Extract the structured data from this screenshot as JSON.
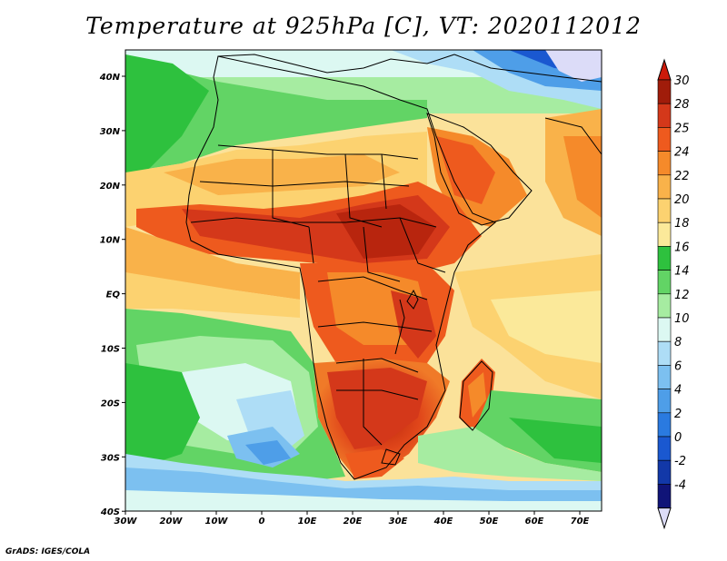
{
  "title": "Temperature at 925hPa [C], VT: 2020112012",
  "credit": "GrADS: IGES/COLA",
  "map": {
    "lat_labels": [
      "40N",
      "30N",
      "20N",
      "10N",
      "EQ",
      "10S",
      "20S",
      "30S",
      "40S"
    ],
    "lon_labels": [
      "30W",
      "20W",
      "10W",
      "0",
      "10E",
      "20E",
      "30E",
      "40E",
      "50E",
      "60E",
      "70E"
    ]
  },
  "colorbar": {
    "labels": [
      "30",
      "28",
      "25",
      "24",
      "22",
      "20",
      "18",
      "16",
      "14",
      "12",
      "10",
      "8",
      "6",
      "4",
      "2",
      "0",
      "-2",
      "-4"
    ],
    "colors": [
      "#a01c0a",
      "#d4381a",
      "#ee5a1e",
      "#f58a2a",
      "#f9b24a",
      "#fcd270",
      "#fbe99a",
      "#2ec13e",
      "#62d465",
      "#a6eca1",
      "#dcf8f2",
      "#aeddf6",
      "#7cc0f0",
      "#4e9ee8",
      "#2a7ae0",
      "#1a58d0",
      "#1238a8",
      "#101478"
    ],
    "top_arrow": "#cc1a0a",
    "bottom_arrow": "#dcdcf8"
  }
}
